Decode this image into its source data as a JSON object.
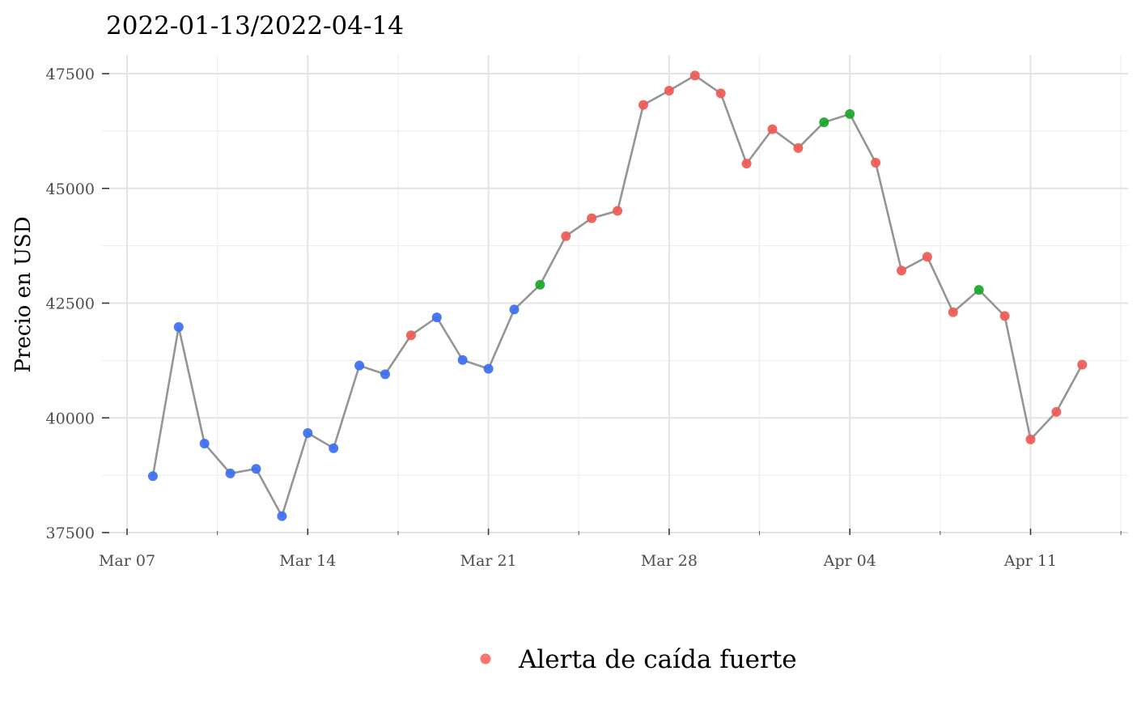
{
  "chart_data": {
    "type": "line",
    "title": "2022-01-13/2022-04-14",
    "xlabel": "",
    "ylabel": "Precio en USD",
    "x_ticks": [
      "Mar 07",
      "Mar 14",
      "Mar 21",
      "Mar 28",
      "Apr 04",
      "Apr 11"
    ],
    "y_ticks": [
      37500,
      40000,
      42500,
      45000,
      47500
    ],
    "ylim": [
      37500,
      47500
    ],
    "xlim": [
      "2022-03-07",
      "2022-04-14"
    ],
    "grid": true,
    "legend": {
      "position": "bottom",
      "entries": [
        {
          "label": "Alerta de caída fuerte",
          "color": "#f8766d"
        }
      ]
    },
    "colors": {
      "blue": "#3b6ff0",
      "green": "#1aa628",
      "red": "#ee5a52",
      "line": "#8a8a8a"
    },
    "points": [
      {
        "date": "2022-03-08",
        "value": 38730,
        "color": "blue"
      },
      {
        "date": "2022-03-09",
        "value": 41980,
        "color": "blue"
      },
      {
        "date": "2022-03-10",
        "value": 39440,
        "color": "blue"
      },
      {
        "date": "2022-03-11",
        "value": 38790,
        "color": "blue"
      },
      {
        "date": "2022-03-12",
        "value": 38890,
        "color": "blue"
      },
      {
        "date": "2022-03-13",
        "value": 37860,
        "color": "blue"
      },
      {
        "date": "2022-03-14",
        "value": 39670,
        "color": "blue"
      },
      {
        "date": "2022-03-15",
        "value": 39340,
        "color": "blue"
      },
      {
        "date": "2022-03-16",
        "value": 41140,
        "color": "blue"
      },
      {
        "date": "2022-03-17",
        "value": 40950,
        "color": "blue"
      },
      {
        "date": "2022-03-18",
        "value": 41800,
        "color": "red"
      },
      {
        "date": "2022-03-19",
        "value": 42190,
        "color": "blue"
      },
      {
        "date": "2022-03-20",
        "value": 41260,
        "color": "blue"
      },
      {
        "date": "2022-03-21",
        "value": 41070,
        "color": "blue"
      },
      {
        "date": "2022-03-22",
        "value": 42360,
        "color": "blue"
      },
      {
        "date": "2022-03-23",
        "value": 42900,
        "color": "green"
      },
      {
        "date": "2022-03-24",
        "value": 43960,
        "color": "red"
      },
      {
        "date": "2022-03-25",
        "value": 44350,
        "color": "red"
      },
      {
        "date": "2022-03-26",
        "value": 44510,
        "color": "red"
      },
      {
        "date": "2022-03-27",
        "value": 46820,
        "color": "red"
      },
      {
        "date": "2022-03-28",
        "value": 47130,
        "color": "red"
      },
      {
        "date": "2022-03-29",
        "value": 47460,
        "color": "red"
      },
      {
        "date": "2022-03-30",
        "value": 47070,
        "color": "red"
      },
      {
        "date": "2022-03-31",
        "value": 45540,
        "color": "red"
      },
      {
        "date": "2022-04-01",
        "value": 46290,
        "color": "red"
      },
      {
        "date": "2022-04-02",
        "value": 45880,
        "color": "red"
      },
      {
        "date": "2022-04-03",
        "value": 46440,
        "color": "green"
      },
      {
        "date": "2022-04-04",
        "value": 46620,
        "color": "green"
      },
      {
        "date": "2022-04-05",
        "value": 45560,
        "color": "red"
      },
      {
        "date": "2022-04-06",
        "value": 43210,
        "color": "red"
      },
      {
        "date": "2022-04-07",
        "value": 43510,
        "color": "red"
      },
      {
        "date": "2022-04-08",
        "value": 42300,
        "color": "red"
      },
      {
        "date": "2022-04-09",
        "value": 42790,
        "color": "green"
      },
      {
        "date": "2022-04-10",
        "value": 42220,
        "color": "red"
      },
      {
        "date": "2022-04-11",
        "value": 39530,
        "color": "red"
      },
      {
        "date": "2022-04-12",
        "value": 40130,
        "color": "red"
      },
      {
        "date": "2022-04-13",
        "value": 41160,
        "color": "red"
      }
    ]
  }
}
